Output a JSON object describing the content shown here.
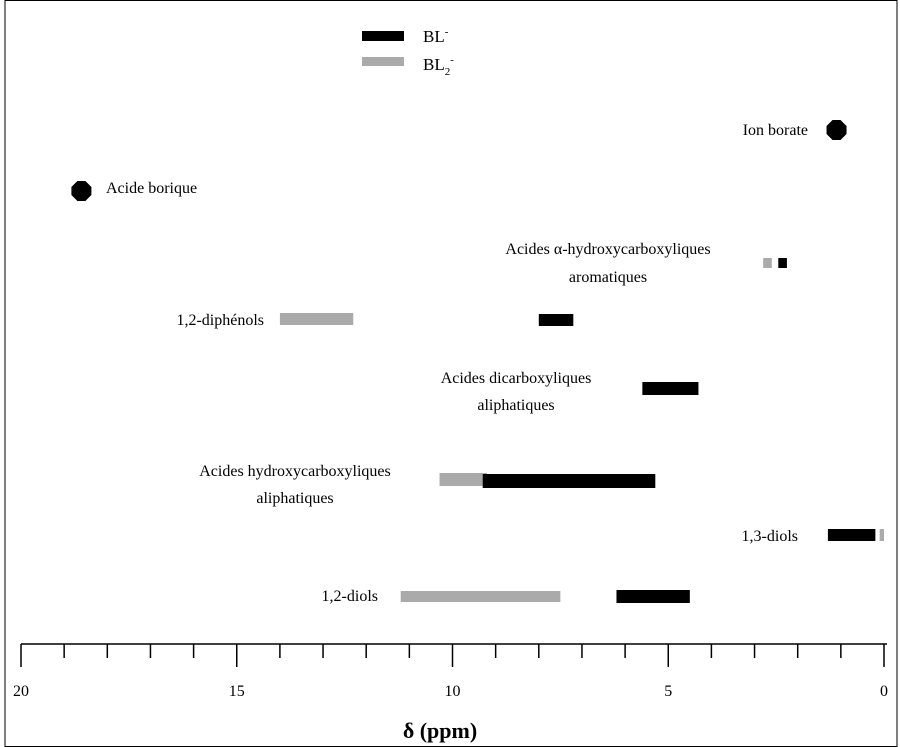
{
  "chart_data": {
    "type": "range",
    "xlabel": "δ (ppm)",
    "xlim": [
      20,
      0
    ],
    "x_ticks": [
      "20",
      "15",
      "10",
      "5",
      "0"
    ],
    "legend": {
      "placement": "top-center",
      "entries": [
        {
          "key": "BL",
          "base": "BL",
          "sub": "",
          "sup": "-",
          "color": "#000000"
        },
        {
          "key": "BL2",
          "base": "BL",
          "sub": "2",
          "sup": "-",
          "color": "#aaaaaa"
        }
      ]
    },
    "points": [
      {
        "label": "Ion borate",
        "x": 1.1,
        "color": "#000000"
      },
      {
        "label": "Acide borique",
        "x": 18.6,
        "color": "#000000"
      }
    ],
    "bars": [
      {
        "series": "BL2",
        "from": 2.8,
        "to": 2.6,
        "group": "Acides α-hydroxycarboxyliques aromatiques"
      },
      {
        "series": "BL",
        "from": 2.45,
        "to": 2.25,
        "group": "Acides α-hydroxycarboxyliques aromatiques"
      },
      {
        "series": "BL2",
        "from": 14.0,
        "to": 12.3,
        "group": "1,2-diphénols"
      },
      {
        "series": "BL",
        "from": 8.0,
        "to": 7.2,
        "group": "1,2-diphénols"
      },
      {
        "series": "BL",
        "from": 5.6,
        "to": 4.3,
        "group": "Acides dicarboxyliques aliphatiques"
      },
      {
        "series": "BL2",
        "from": 10.3,
        "to": 9.2,
        "group": "Acides hydroxycarboxyliques aliphatiques"
      },
      {
        "series": "BL",
        "from": 9.3,
        "to": 5.3,
        "group": "Acides hydroxycarboxyliques aliphatiques"
      },
      {
        "series": "BL",
        "from": 1.3,
        "to": 0.2,
        "group": "1,3-diols"
      },
      {
        "series": "BL2",
        "from": 0.1,
        "to": 0.0,
        "group": "1,3-diols"
      },
      {
        "series": "BL2",
        "from": 11.2,
        "to": 7.5,
        "group": "1,2-diols"
      },
      {
        "series": "BL",
        "from": 6.2,
        "to": 4.5,
        "group": "1,2-diols"
      }
    ],
    "labels": {
      "ion_borate": "Ion borate",
      "acide_borique": "Acide borique",
      "aromatic_1": "Acides α-hydroxycarboxyliques",
      "aromatic_2": "aromatiques",
      "diphenols": "1,2-diphénols",
      "dicarbox_1": "Acides dicarboxyliques",
      "dicarbox_2": "aliphatiques",
      "hydroxy_1": "Acides hydroxycarboxyliques",
      "hydroxy_2": "aliphatiques",
      "diols13": "1,3-diols",
      "diols12": "1,2-diols"
    }
  }
}
